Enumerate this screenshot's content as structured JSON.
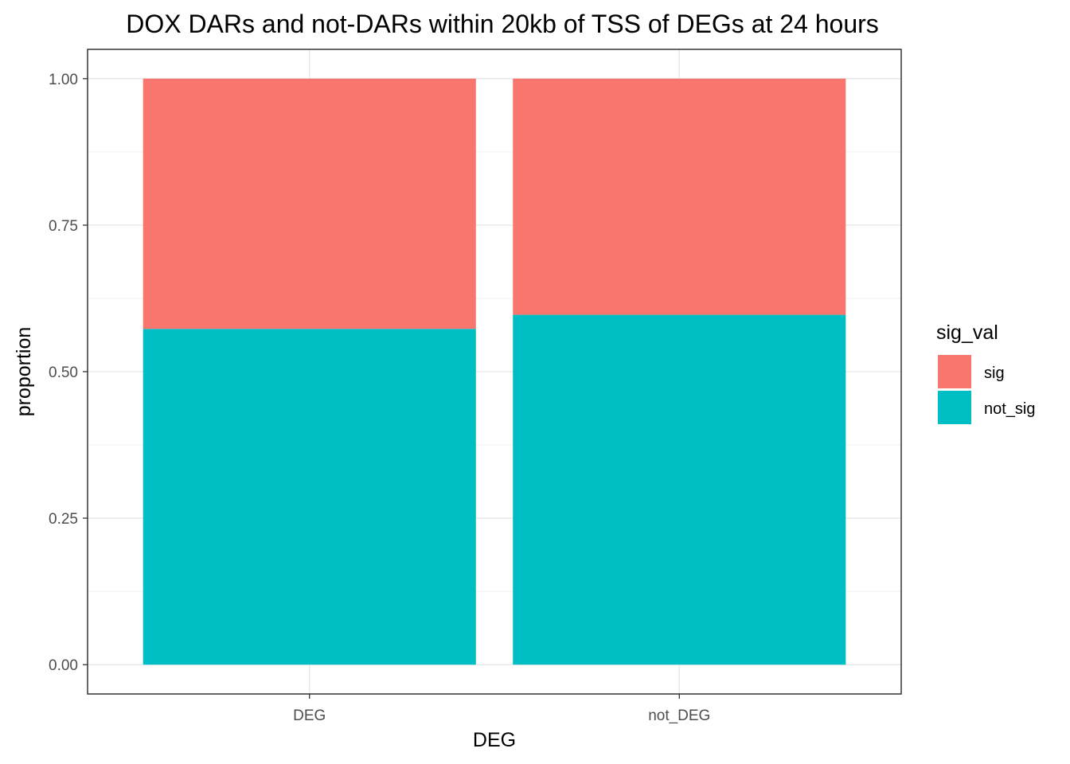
{
  "chart_data": {
    "type": "bar",
    "stacked": true,
    "title": "DOX DARs and not-DARs within 20kb of TSS of DEGs at 24 hours",
    "xlabel": "DEG",
    "ylabel": "proportion",
    "categories": [
      "DEG",
      "not_DEG"
    ],
    "series": [
      {
        "name": "sig",
        "values": [
          0.427,
          0.403
        ],
        "color": "#F8766D"
      },
      {
        "name": "not_sig",
        "values": [
          0.573,
          0.597
        ],
        "color": "#00BFC4"
      }
    ],
    "ylim": [
      -0.05,
      1.05
    ],
    "yticks": [
      0.0,
      0.25,
      0.5,
      0.75,
      1.0
    ],
    "ytick_labels": [
      "0.00",
      "0.25",
      "0.50",
      "0.75",
      "1.00"
    ],
    "legend": {
      "title": "sig_val",
      "position": "right"
    },
    "grid": true
  }
}
